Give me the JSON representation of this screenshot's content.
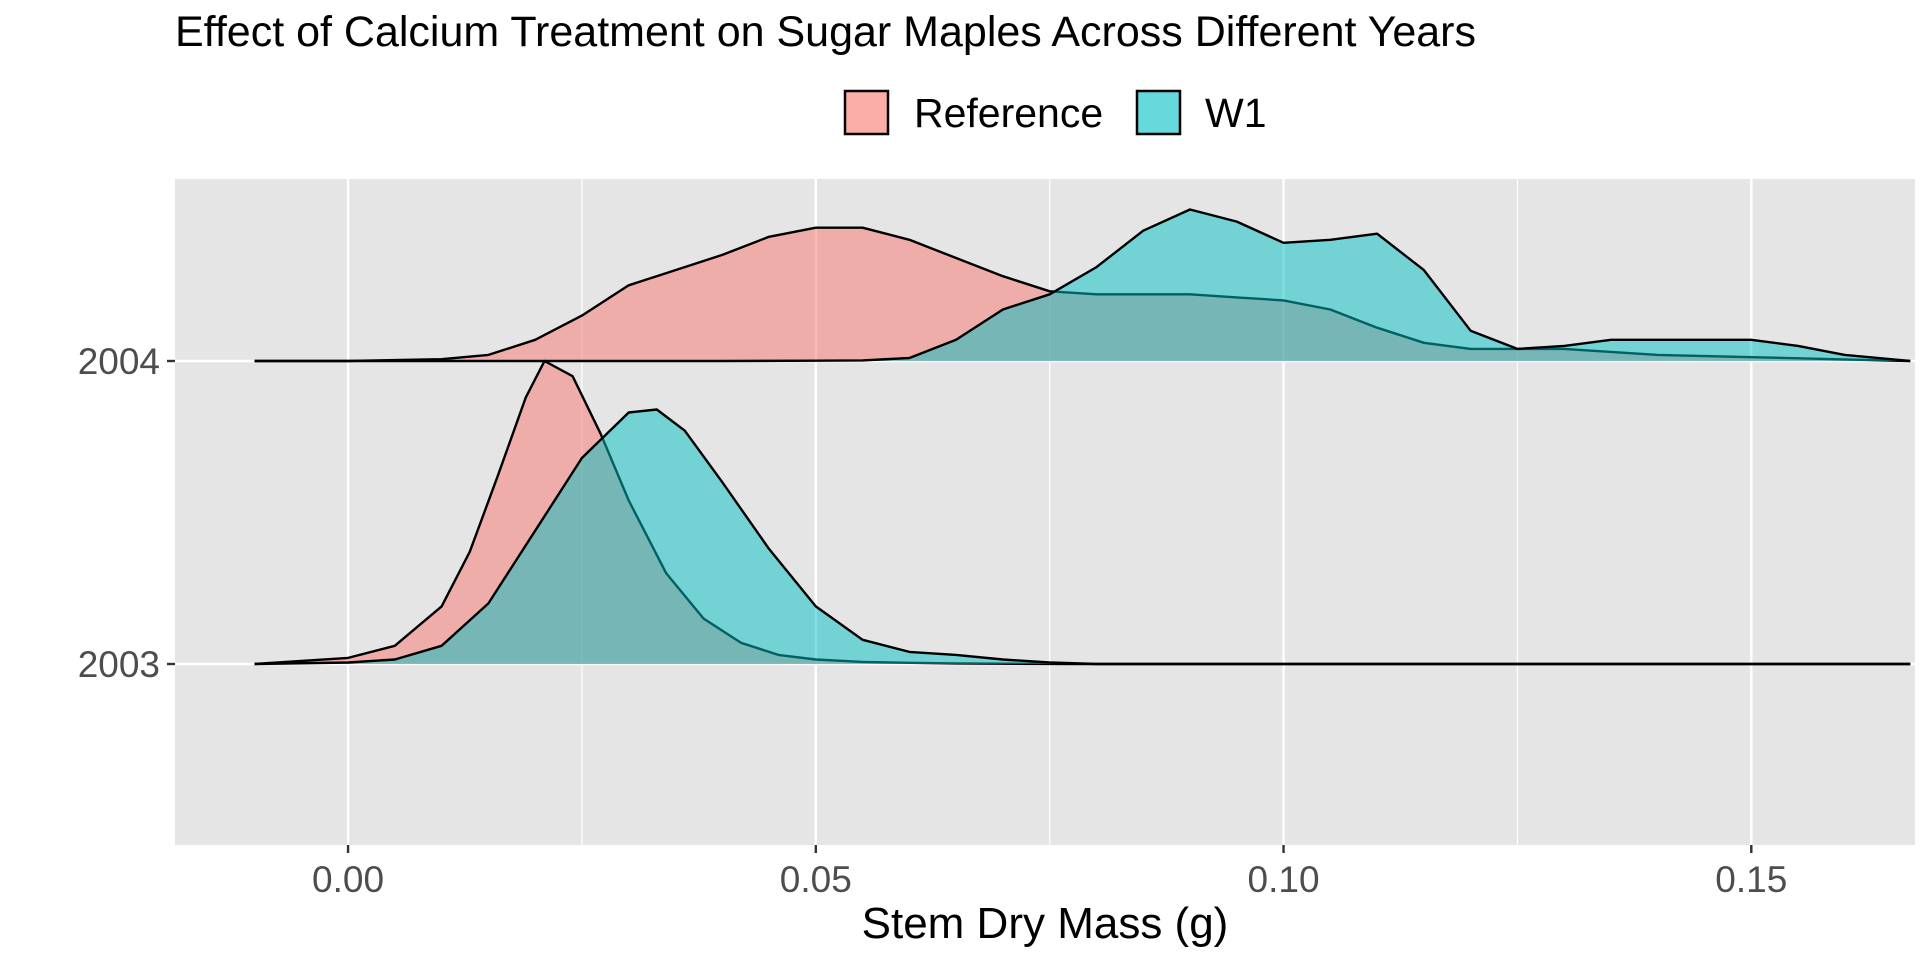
{
  "chart_data": {
    "type": "ridgeline",
    "title": "Effect of Calcium Treatment on Sugar Maples Across Different Years",
    "xlabel": "Stem Dry Mass (g)",
    "ylabel": "",
    "xlim": [
      -0.0185,
      0.1675
    ],
    "x_ticks": [
      {
        "value": 0.0,
        "label": "0.00"
      },
      {
        "value": 0.05,
        "label": "0.05"
      },
      {
        "value": 0.1,
        "label": "0.10"
      },
      {
        "value": 0.15,
        "label": "0.15"
      }
    ],
    "categories": [
      "2003",
      "2004"
    ],
    "legend": {
      "position": "top",
      "entries": [
        {
          "name": "Reference",
          "color": "#F8766D"
        },
        {
          "name": "W1",
          "color": "#00BFC4"
        }
      ]
    },
    "grid": true,
    "background": "#E5E5E5",
    "fill_alpha": 0.5,
    "series": [
      {
        "name": "Reference",
        "year": "2003",
        "color": "#F8766D",
        "x": [
          -0.01,
          0.0,
          0.005,
          0.01,
          0.013,
          0.016,
          0.019,
          0.021,
          0.024,
          0.027,
          0.03,
          0.034,
          0.038,
          0.042,
          0.046,
          0.05,
          0.055,
          0.06,
          0.065,
          0.07,
          0.078,
          0.09,
          0.167
        ],
        "y": [
          0.0,
          0.02,
          0.06,
          0.19,
          0.37,
          0.62,
          0.88,
          1.0,
          0.95,
          0.76,
          0.54,
          0.3,
          0.15,
          0.07,
          0.03,
          0.015,
          0.007,
          0.004,
          0.002,
          0.001,
          0.0,
          0.0,
          0.0
        ]
      },
      {
        "name": "W1",
        "year": "2003",
        "color": "#00BFC4",
        "x": [
          -0.01,
          0.0,
          0.005,
          0.01,
          0.015,
          0.02,
          0.025,
          0.03,
          0.033,
          0.036,
          0.04,
          0.045,
          0.05,
          0.055,
          0.06,
          0.065,
          0.07,
          0.075,
          0.08,
          0.09,
          0.167
        ],
        "y": [
          0.0,
          0.005,
          0.015,
          0.06,
          0.2,
          0.44,
          0.68,
          0.83,
          0.84,
          0.77,
          0.6,
          0.38,
          0.19,
          0.08,
          0.04,
          0.03,
          0.015,
          0.005,
          0.0,
          0.0,
          0.0
        ]
      },
      {
        "name": "Reference",
        "year": "2004",
        "color": "#F8766D",
        "x": [
          -0.01,
          0.0,
          0.01,
          0.015,
          0.02,
          0.025,
          0.03,
          0.035,
          0.04,
          0.045,
          0.05,
          0.055,
          0.06,
          0.065,
          0.07,
          0.075,
          0.08,
          0.085,
          0.09,
          0.095,
          0.1,
          0.105,
          0.11,
          0.115,
          0.12,
          0.13,
          0.14,
          0.167
        ],
        "y": [
          0.0,
          0.0,
          0.006,
          0.02,
          0.07,
          0.15,
          0.25,
          0.3,
          0.35,
          0.41,
          0.44,
          0.44,
          0.4,
          0.34,
          0.28,
          0.23,
          0.22,
          0.22,
          0.22,
          0.21,
          0.2,
          0.17,
          0.11,
          0.06,
          0.04,
          0.04,
          0.02,
          0.0
        ]
      },
      {
        "name": "W1",
        "year": "2004",
        "color": "#00BFC4",
        "x": [
          -0.01,
          0.04,
          0.05,
          0.055,
          0.06,
          0.065,
          0.07,
          0.075,
          0.08,
          0.085,
          0.09,
          0.095,
          0.1,
          0.105,
          0.11,
          0.115,
          0.12,
          0.125,
          0.13,
          0.135,
          0.14,
          0.145,
          0.15,
          0.155,
          0.16,
          0.167
        ],
        "y": [
          0.0,
          0.0,
          0.001,
          0.002,
          0.01,
          0.07,
          0.17,
          0.22,
          0.31,
          0.43,
          0.5,
          0.46,
          0.39,
          0.4,
          0.42,
          0.3,
          0.1,
          0.04,
          0.05,
          0.07,
          0.07,
          0.07,
          0.07,
          0.05,
          0.02,
          0.0
        ]
      }
    ]
  }
}
